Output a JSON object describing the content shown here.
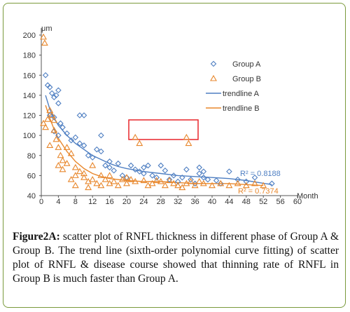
{
  "colors": {
    "group_a": "#4f7fc2",
    "group_b": "#e8872c",
    "highlight_box": "#e8262c",
    "axis": "#444444",
    "border": "#7a9a3c"
  },
  "chart_data": {
    "type": "scatter",
    "ylabel": "μm",
    "xlabel": "Month",
    "xlim": [
      0,
      60
    ],
    "ylim": [
      40,
      200
    ],
    "x_ticks": [
      0,
      4,
      8,
      12,
      16,
      20,
      24,
      28,
      32,
      36,
      40,
      44,
      48,
      52,
      56,
      60
    ],
    "y_ticks": [
      40,
      60,
      80,
      100,
      120,
      140,
      160,
      180,
      200
    ],
    "grid": false,
    "legend_position": "top-right",
    "series": [
      {
        "name": "Group A",
        "marker": "diamond",
        "color": "#4f7fc2",
        "points": [
          [
            1,
            160
          ],
          [
            1.5,
            150
          ],
          [
            2,
            148
          ],
          [
            2.5,
            142
          ],
          [
            3,
            138
          ],
          [
            3.5,
            140
          ],
          [
            4,
            145
          ],
          [
            4,
            132
          ],
          [
            2,
            120
          ],
          [
            3,
            118
          ],
          [
            4.5,
            112
          ],
          [
            5,
            108
          ],
          [
            3,
            104
          ],
          [
            4,
            100
          ],
          [
            6,
            102
          ],
          [
            7,
            95
          ],
          [
            8,
            98
          ],
          [
            9,
            120
          ],
          [
            10,
            120
          ],
          [
            9,
            92
          ],
          [
            10,
            90
          ],
          [
            11,
            80
          ],
          [
            12,
            78
          ],
          [
            13,
            86
          ],
          [
            14,
            100
          ],
          [
            14,
            84
          ],
          [
            15,
            70
          ],
          [
            16,
            74
          ],
          [
            16,
            68
          ],
          [
            17,
            65
          ],
          [
            18,
            72
          ],
          [
            19,
            60
          ],
          [
            20,
            58
          ],
          [
            21,
            70
          ],
          [
            22,
            66
          ],
          [
            23,
            64
          ],
          [
            24,
            68
          ],
          [
            25,
            70
          ],
          [
            24,
            62
          ],
          [
            26,
            60
          ],
          [
            27,
            58
          ],
          [
            28,
            70
          ],
          [
            29,
            65
          ],
          [
            30,
            56
          ],
          [
            31,
            60
          ],
          [
            32,
            54
          ],
          [
            33,
            58
          ],
          [
            34,
            66
          ],
          [
            35,
            56
          ],
          [
            36,
            52
          ],
          [
            37,
            62
          ],
          [
            37,
            68
          ],
          [
            38,
            64
          ],
          [
            38,
            58
          ],
          [
            39,
            56
          ],
          [
            41,
            55
          ],
          [
            42,
            52
          ],
          [
            44,
            64
          ],
          [
            46,
            56
          ],
          [
            48,
            54
          ],
          [
            50,
            58
          ],
          [
            54,
            52
          ]
        ]
      },
      {
        "name": "Group B",
        "marker": "triangle",
        "color": "#e8872c",
        "points": [
          [
            0.5,
            198
          ],
          [
            0.8,
            192
          ],
          [
            0.5,
            112
          ],
          [
            1,
            108
          ],
          [
            1.5,
            116
          ],
          [
            2,
            125
          ],
          [
            2.5,
            120
          ],
          [
            3,
            115
          ],
          [
            3,
            105
          ],
          [
            2,
            90
          ],
          [
            3.5,
            96
          ],
          [
            4,
            88
          ],
          [
            4.5,
            80
          ],
          [
            5,
            75
          ],
          [
            4,
            70
          ],
          [
            5,
            66
          ],
          [
            6,
            88
          ],
          [
            7,
            82
          ],
          [
            6,
            72
          ],
          [
            8,
            68
          ],
          [
            9,
            64
          ],
          [
            8,
            60
          ],
          [
            7,
            56
          ],
          [
            8,
            50
          ],
          [
            10,
            62
          ],
          [
            10,
            58
          ],
          [
            11,
            54
          ],
          [
            11,
            48
          ],
          [
            12,
            70
          ],
          [
            12,
            56
          ],
          [
            13,
            52
          ],
          [
            14,
            60
          ],
          [
            14,
            50
          ],
          [
            15,
            56
          ],
          [
            16,
            60
          ],
          [
            16,
            52
          ],
          [
            17,
            54
          ],
          [
            18,
            50
          ],
          [
            19,
            56
          ],
          [
            20,
            52
          ],
          [
            20,
            58
          ],
          [
            21,
            56
          ],
          [
            22,
            54
          ],
          [
            22,
            98
          ],
          [
            23,
            92
          ],
          [
            24,
            55
          ],
          [
            25,
            50
          ],
          [
            26,
            52
          ],
          [
            27,
            55
          ],
          [
            28,
            54
          ],
          [
            29,
            50
          ],
          [
            30,
            55
          ],
          [
            31,
            52
          ],
          [
            32,
            50
          ],
          [
            33,
            48
          ],
          [
            34,
            52
          ],
          [
            34,
            98
          ],
          [
            34.5,
            92
          ],
          [
            35,
            54
          ],
          [
            36,
            50
          ],
          [
            37,
            54
          ],
          [
            38,
            52
          ],
          [
            40,
            50
          ],
          [
            42,
            52
          ],
          [
            44,
            50
          ],
          [
            46,
            52
          ],
          [
            48,
            50
          ],
          [
            50,
            52
          ],
          [
            52,
            50
          ]
        ]
      }
    ],
    "trendlines": [
      {
        "name": "trendline A",
        "color": "#4f7fc2",
        "r_squared_label": "R² = 0.8188",
        "points": [
          [
            1,
            140
          ],
          [
            2,
            126
          ],
          [
            3,
            117
          ],
          [
            4,
            110
          ],
          [
            6,
            100
          ],
          [
            8,
            92
          ],
          [
            10,
            86
          ],
          [
            12,
            80
          ],
          [
            14,
            76
          ],
          [
            16,
            72
          ],
          [
            18,
            69
          ],
          [
            20,
            67
          ],
          [
            24,
            64
          ],
          [
            28,
            62
          ],
          [
            32,
            60
          ],
          [
            36,
            59
          ],
          [
            40,
            58
          ],
          [
            44,
            57
          ],
          [
            48,
            55
          ],
          [
            51,
            53
          ],
          [
            54,
            51
          ]
        ]
      },
      {
        "name": "trendline B",
        "color": "#e8872c",
        "r_squared_label": "R² = 0.7374",
        "points": [
          [
            1,
            130
          ],
          [
            2,
            117
          ],
          [
            3,
            106
          ],
          [
            4,
            97
          ],
          [
            6,
            84
          ],
          [
            8,
            74
          ],
          [
            10,
            67
          ],
          [
            12,
            62
          ],
          [
            14,
            59
          ],
          [
            16,
            57
          ],
          [
            20,
            55
          ],
          [
            24,
            54
          ],
          [
            28,
            54
          ],
          [
            32,
            53
          ],
          [
            36,
            52
          ],
          [
            40,
            52
          ],
          [
            44,
            52
          ],
          [
            48,
            51
          ],
          [
            52,
            50
          ]
        ]
      }
    ]
  },
  "caption": {
    "label": "Figure2A:",
    "text": " scatter plot of RNFL thickness in different phase of Group A & Group B. The trend line (sixth-order polynomial curve fitting) of scatter plot of RNFL & disease course showed that thinning rate of RNFL in Group B is much faster than Group A."
  }
}
